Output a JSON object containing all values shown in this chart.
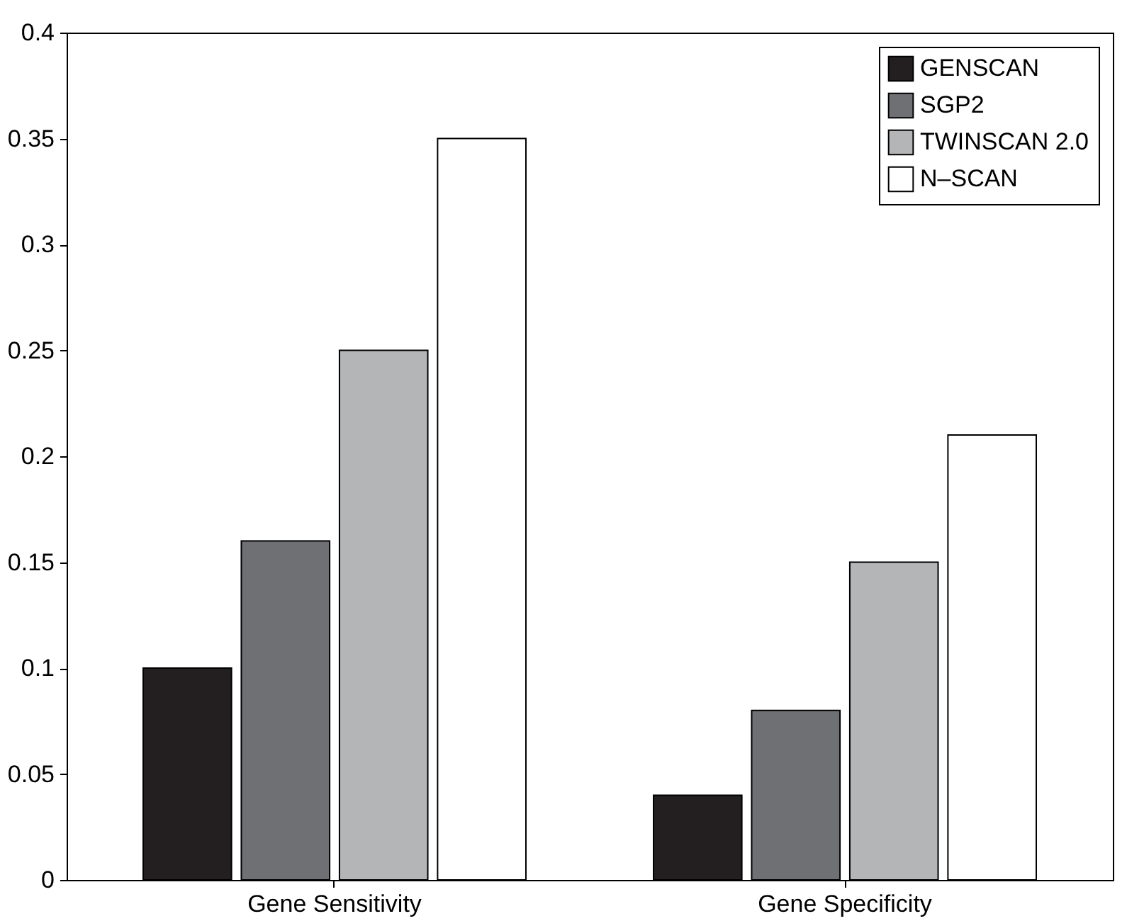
{
  "chart_data": {
    "type": "bar",
    "categories": [
      "Gene Sensitivity",
      "Gene Specificity"
    ],
    "series": [
      {
        "name": "GENSCAN",
        "color": "#231f20",
        "values": [
          0.1,
          0.04
        ]
      },
      {
        "name": "SGP2",
        "color": "#6f7074",
        "values": [
          0.16,
          0.08
        ]
      },
      {
        "name": "TWINSCAN 2.0",
        "color": "#b3b5b6",
        "values": [
          0.25,
          0.15
        ]
      },
      {
        "name": "N–SCAN",
        "color": "#ffffff",
        "values": [
          0.35,
          0.21
        ]
      }
    ],
    "ylim": [
      0,
      0.4
    ],
    "yticks": [
      0,
      0.05,
      0.1,
      0.15,
      0.2,
      0.25,
      0.3,
      0.35,
      0.4
    ],
    "grid": false,
    "legend": "top right"
  }
}
